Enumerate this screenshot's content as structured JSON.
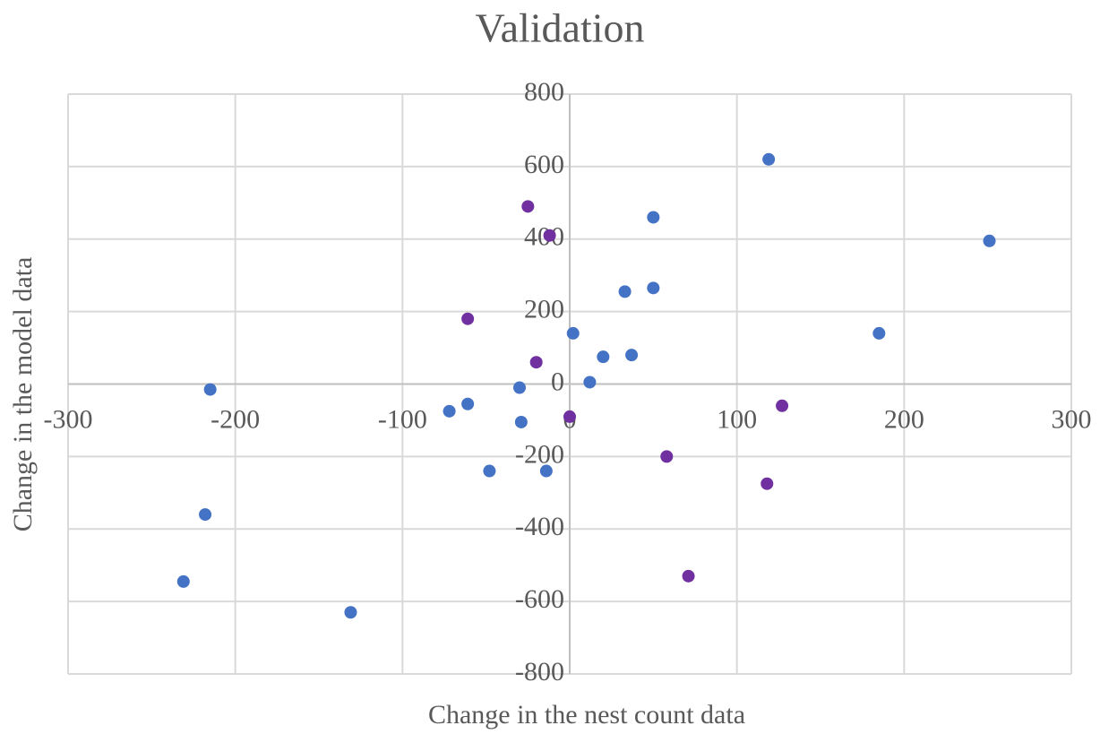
{
  "chart_data": {
    "type": "scatter",
    "title": "Validation",
    "x_label": "Change in the nest count data",
    "y_label": "Change in the model data",
    "xlim": [
      -300,
      300
    ],
    "xticks": [
      -300,
      -200,
      -100,
      0,
      100,
      200,
      300
    ],
    "ylim": [
      -800,
      800
    ],
    "yticks": [
      -800,
      -600,
      -400,
      -200,
      0,
      200,
      400,
      600,
      800
    ],
    "grid": true,
    "series": [
      {
        "color": "#4472c4",
        "x": [
          -215,
          -218,
          -231,
          -131,
          -72,
          -61,
          -30,
          -29,
          -48,
          -14,
          2,
          12,
          20,
          37,
          33,
          50,
          50,
          119,
          185,
          251
        ],
        "y": [
          -15,
          -360,
          -545,
          -630,
          -75,
          -55,
          -10,
          -105,
          -240,
          -240,
          140,
          5,
          75,
          80,
          255,
          265,
          460,
          620,
          140,
          395
        ]
      },
      {
        "color": "#7030a0",
        "x": [
          -25,
          -12,
          -61,
          -20,
          0,
          58,
          118,
          127,
          71
        ],
        "y": [
          490,
          410,
          180,
          60,
          -90,
          -200,
          -275,
          -60,
          -530
        ]
      }
    ]
  }
}
